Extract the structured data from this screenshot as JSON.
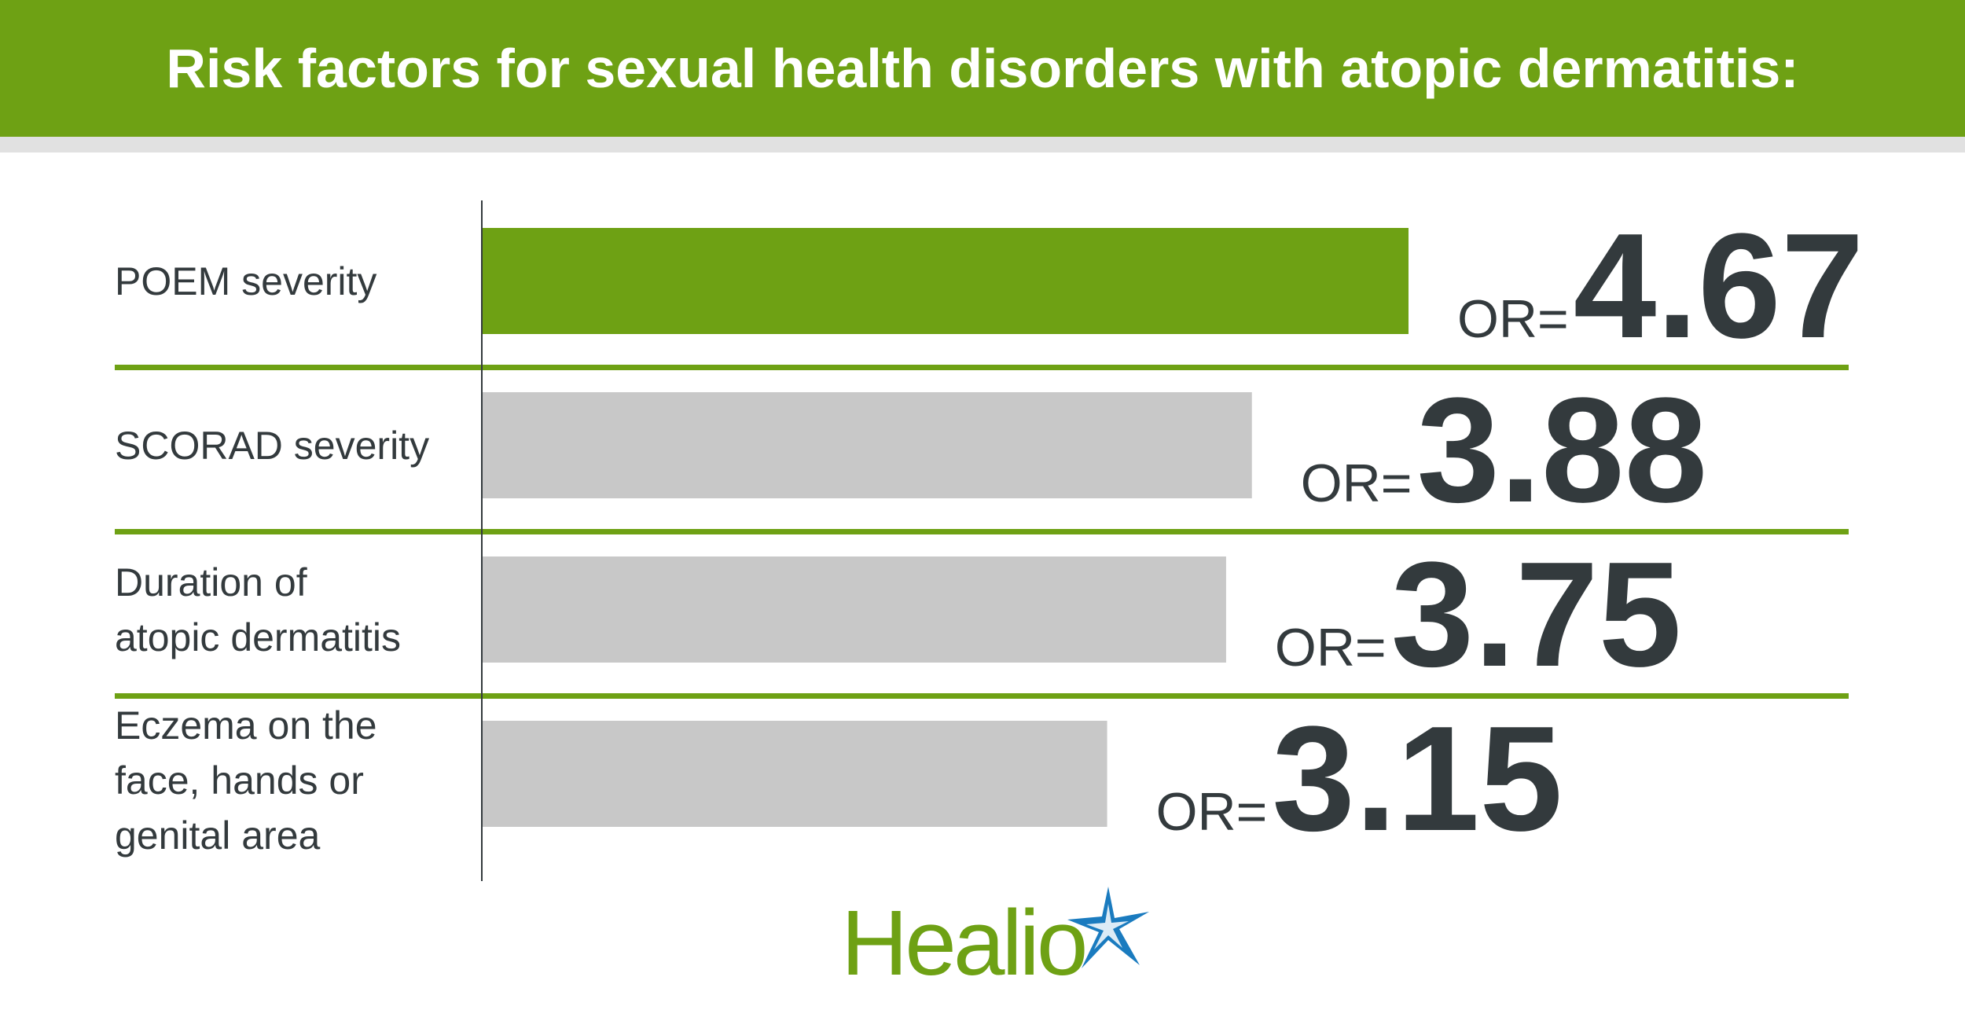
{
  "header": {
    "title": "Risk factors for sexual health disorders with atopic dermatitis:"
  },
  "colors": {
    "brand_green": "#6ea114",
    "bar_highlight": "#6ea114",
    "bar_default": "#c8c8c8",
    "text_dark": "#333a3d",
    "star_blue": "#1a7bbf"
  },
  "chart_data": {
    "type": "bar",
    "orientation": "horizontal",
    "title": "Risk factors for sexual health disorders with atopic dermatitis:",
    "value_prefix": "OR=",
    "categories": [
      "POEM severity",
      "SCORAD severity",
      "Duration of atopic dermatitis",
      "Eczema on the face, hands or genital area"
    ],
    "category_lines": [
      [
        "POEM severity"
      ],
      [
        "SCORAD severity"
      ],
      [
        "Duration of",
        "atopic dermatitis"
      ],
      [
        "Eczema on the",
        "face, hands or",
        "genital area"
      ]
    ],
    "values": [
      4.67,
      3.88,
      3.75,
      3.15
    ],
    "value_labels": [
      "4.67",
      "3.88",
      "3.75",
      "3.15"
    ],
    "highlight_index": 0,
    "xlim": [
      0,
      4.67
    ]
  },
  "logo": {
    "text": "Healio",
    "icon": "star-icon"
  }
}
